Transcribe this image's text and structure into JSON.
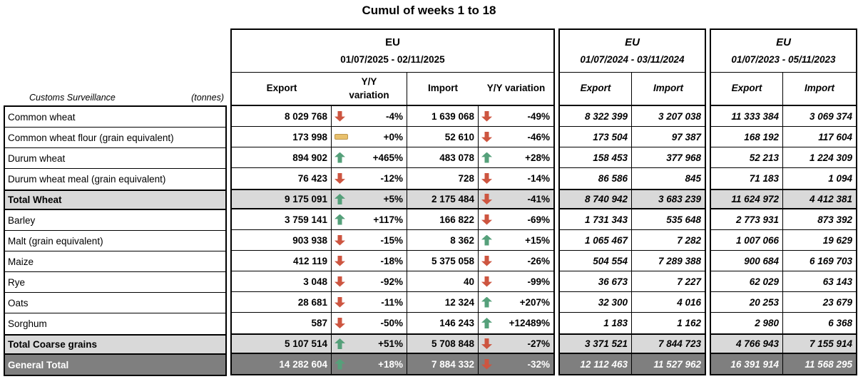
{
  "title": "Cumul of weeks 1 to 18",
  "corner": {
    "left": "Customs Surveillance",
    "right": "(tonnes)"
  },
  "colors": {
    "up_arrow": "#55a07a",
    "down_arrow": "#cd5540",
    "flat_fill": "#e8c06c",
    "flat_border": "#bd9750",
    "total_row_bg": "#d9d9d9",
    "grand_total_bg": "#7f7f7f",
    "border": "#000000"
  },
  "groups": [
    {
      "region": "EU",
      "period": "01/07/2025 - 02/11/2025",
      "columns": [
        "Export",
        "Y/Y\nvariation",
        "Import",
        "Y/Y variation"
      ]
    },
    {
      "region": "EU",
      "period": "01/07/2024 - 03/11/2024",
      "columns": [
        "Export",
        "Import"
      ]
    },
    {
      "region": "EU",
      "period": "01/07/2023 - 05/11/2023",
      "columns": [
        "Export",
        "Import"
      ]
    }
  ],
  "rows": [
    {
      "label": "Common wheat",
      "export": "8 029 768",
      "export_trend": "down",
      "export_pct": "-4%",
      "import": "1 639 068",
      "import_trend": "down",
      "import_pct": "-49%",
      "export_2024": "8 322 399",
      "import_2024": "3 207 038",
      "export_2023": "11 333 384",
      "import_2023": "3 069 374"
    },
    {
      "label": "Common wheat flour (grain equivalent)",
      "export": "173 998",
      "export_trend": "flat",
      "export_pct": "+0%",
      "import": "52 610",
      "import_trend": "down",
      "import_pct": "-46%",
      "export_2024": "173 504",
      "import_2024": "97 387",
      "export_2023": "168 192",
      "import_2023": "117 604"
    },
    {
      "label": "Durum wheat",
      "export": "894 902",
      "export_trend": "up",
      "export_pct": "+465%",
      "import": "483 078",
      "import_trend": "up",
      "import_pct": "+28%",
      "export_2024": "158 453",
      "import_2024": "377 968",
      "export_2023": "52 213",
      "import_2023": "1 224 309"
    },
    {
      "label": "Durum wheat meal (grain equivalent)",
      "export": "76 423",
      "export_trend": "down",
      "export_pct": "-12%",
      "import": "728",
      "import_trend": "down",
      "import_pct": "-14%",
      "export_2024": "86 586",
      "import_2024": "845",
      "export_2023": "71 183",
      "import_2023": "1 094"
    },
    {
      "label": "Total Wheat",
      "export": "9 175 091",
      "export_trend": "up",
      "export_pct": "+5%",
      "import": "2 175 484",
      "import_trend": "down",
      "import_pct": "-41%",
      "export_2024": "8 740 942",
      "import_2024": "3 683 239",
      "export_2023": "11 624 972",
      "import_2023": "4 412 381"
    },
    {
      "label": "Barley",
      "export": "3 759 141",
      "export_trend": "up",
      "export_pct": "+117%",
      "import": "166 822",
      "import_trend": "down",
      "import_pct": "-69%",
      "export_2024": "1 731 343",
      "import_2024": "535 648",
      "export_2023": "2 773 931",
      "import_2023": "873 392"
    },
    {
      "label": "Malt (grain equivalent)",
      "export": "903 938",
      "export_trend": "down",
      "export_pct": "-15%",
      "import": "8 362",
      "import_trend": "up",
      "import_pct": "+15%",
      "export_2024": "1 065 467",
      "import_2024": "7 282",
      "export_2023": "1 007 066",
      "import_2023": "19 629"
    },
    {
      "label": "Maize",
      "export": "412 119",
      "export_trend": "down",
      "export_pct": "-18%",
      "import": "5 375 058",
      "import_trend": "down",
      "import_pct": "-26%",
      "export_2024": "504 554",
      "import_2024": "7 289 388",
      "export_2023": "900 684",
      "import_2023": "6 169 703"
    },
    {
      "label": "Rye",
      "export": "3 048",
      "export_trend": "down",
      "export_pct": "-92%",
      "import": "40",
      "import_trend": "down",
      "import_pct": "-99%",
      "export_2024": "36 673",
      "import_2024": "7 227",
      "export_2023": "62 029",
      "import_2023": "63 143"
    },
    {
      "label": "Oats",
      "export": "28 681",
      "export_trend": "down",
      "export_pct": "-11%",
      "import": "12 324",
      "import_trend": "up",
      "import_pct": "+207%",
      "export_2024": "32 300",
      "import_2024": "4 016",
      "export_2023": "20 253",
      "import_2023": "23 679"
    },
    {
      "label": "Sorghum",
      "export": "587",
      "export_trend": "down",
      "export_pct": "-50%",
      "import": "146 243",
      "import_trend": "up",
      "import_pct": "+12489%",
      "export_2024": "1 183",
      "import_2024": "1 162",
      "export_2023": "2 980",
      "import_2023": "6 368"
    },
    {
      "label": "Total Coarse grains",
      "export": "5 107 514",
      "export_trend": "up",
      "export_pct": "+51%",
      "import": "5 708 848",
      "import_trend": "down",
      "import_pct": "-27%",
      "export_2024": "3 371 521",
      "import_2024": "7 844 723",
      "export_2023": "4 766 943",
      "import_2023": "7 155 914"
    },
    {
      "label": "General Total",
      "export": "14 282 604",
      "export_trend": "up",
      "export_pct": "+18%",
      "import": "7 884 332",
      "import_trend": "down",
      "import_pct": "-32%",
      "export_2024": "12 112 463",
      "import_2024": "11 527 962",
      "export_2023": "16 391 914",
      "import_2023": "11 568 295"
    }
  ]
}
